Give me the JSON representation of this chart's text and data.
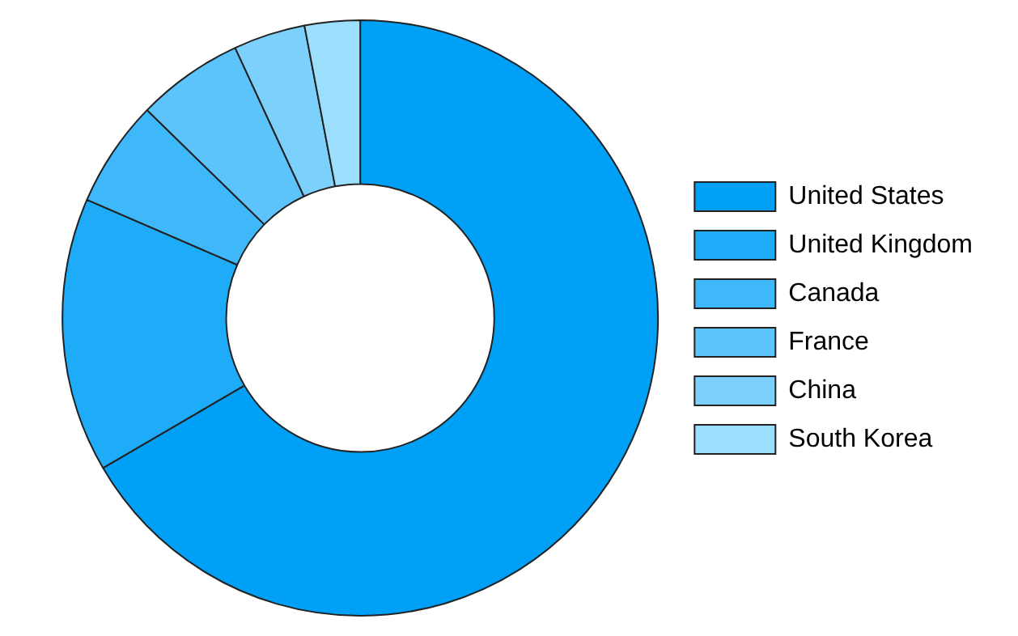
{
  "chart_data": {
    "type": "donut",
    "categories": [
      "United States",
      "United Kingdom",
      "Canada",
      "France",
      "China",
      "South Korea"
    ],
    "values": [
      66.6,
      14.9,
      5.8,
      5.8,
      3.9,
      3.0
    ],
    "colors": [
      "#00a0f7",
      "#1eabf8",
      "#3fb8fa",
      "#5dc4fb",
      "#7cd1fc",
      "#9bdffd"
    ],
    "legend": "right"
  }
}
